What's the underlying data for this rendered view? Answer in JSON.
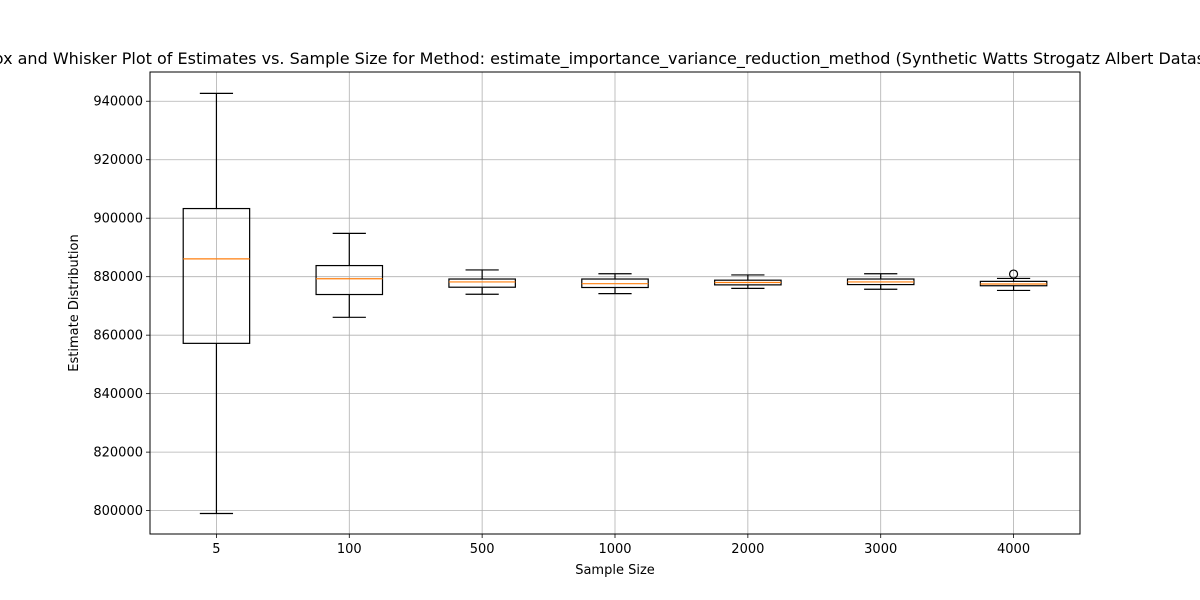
{
  "chart_data": {
    "type": "box",
    "title": "Box and Whisker Plot of Estimates vs. Sample Size for Method: estimate_importance_variance_reduction_method (Synthetic Watts Strogatz Albert Dataset), P",
    "xlabel": "Sample Size",
    "ylabel": "Estimate Distribution",
    "categories": [
      "5",
      "100",
      "500",
      "1000",
      "2000",
      "3000",
      "4000"
    ],
    "ylim": [
      792000,
      950000
    ],
    "yticks": [
      800000,
      820000,
      840000,
      860000,
      880000,
      900000,
      920000,
      940000
    ],
    "grid": true,
    "colors": {
      "box": "#000000",
      "median": "#ff7f0e",
      "grid": "#b0b0b0"
    },
    "boxes": [
      {
        "category": "5",
        "whisker_low": 799000,
        "q1": 857200,
        "median": 886100,
        "q3": 903300,
        "whisker_high": 942700,
        "outliers": []
      },
      {
        "category": "100",
        "whisker_low": 866100,
        "q1": 873900,
        "median": 879300,
        "q3": 883800,
        "whisker_high": 894800,
        "outliers": []
      },
      {
        "category": "500",
        "whisker_low": 874000,
        "q1": 876400,
        "median": 878200,
        "q3": 879200,
        "whisker_high": 882300,
        "outliers": []
      },
      {
        "category": "1000",
        "whisker_low": 874200,
        "q1": 876300,
        "median": 877600,
        "q3": 879200,
        "whisker_high": 881000,
        "outliers": []
      },
      {
        "category": "2000",
        "whisker_low": 876000,
        "q1": 877200,
        "median": 878000,
        "q3": 878800,
        "whisker_high": 880600,
        "outliers": []
      },
      {
        "category": "3000",
        "whisker_low": 875700,
        "q1": 877300,
        "median": 878200,
        "q3": 879200,
        "whisker_high": 881000,
        "outliers": []
      },
      {
        "category": "4000",
        "whisker_low": 875300,
        "q1": 876900,
        "median": 877500,
        "q3": 878400,
        "whisker_high": 879400,
        "outliers": [
          880900
        ]
      }
    ]
  }
}
